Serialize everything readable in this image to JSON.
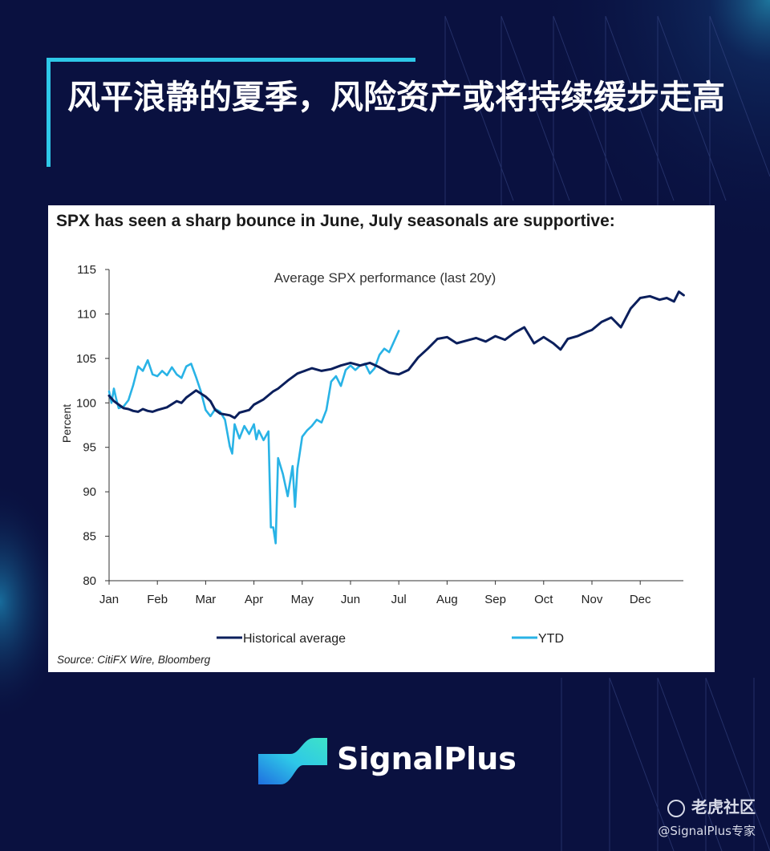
{
  "page_title": "风平浪静的夏季，风险资产或将持续缓步走高",
  "colors": {
    "background": "#0a1140",
    "accent": "#2ec8e8",
    "historical": "#0b1f5c",
    "ytd": "#29b3e6"
  },
  "brand": {
    "name": "SignalPlus"
  },
  "watermark": {
    "site": "老虎社区",
    "author": "@SignalPlus专家",
    "icon": "tiger-icon"
  },
  "chart_data": {
    "type": "line",
    "headline": "SPX has seen a sharp bounce in June, July seasonals are supportive:",
    "title": "Average SPX performance (last 20y)",
    "ylabel": "Percent",
    "xlabel": "",
    "ylim": [
      80,
      115
    ],
    "yticks": [
      80,
      85,
      90,
      95,
      100,
      105,
      110,
      115
    ],
    "months": [
      "Jan",
      "Feb",
      "Mar",
      "Apr",
      "May",
      "Jun",
      "Jul",
      "Aug",
      "Sep",
      "Oct",
      "Nov",
      "Dec"
    ],
    "grid": false,
    "legend_position": "bottom",
    "source": "Source: CitiFX Wire, Bloomberg",
    "series": [
      {
        "name": "Historical average",
        "color": "#0b1f5c",
        "x": [
          0,
          0.1,
          0.2,
          0.3,
          0.4,
          0.5,
          0.6,
          0.7,
          0.8,
          0.9,
          1.0,
          1.2,
          1.4,
          1.5,
          1.6,
          1.8,
          2.0,
          2.1,
          2.2,
          2.3,
          2.5,
          2.6,
          2.7,
          2.9,
          3.0,
          3.2,
          3.4,
          3.5,
          3.7,
          3.9,
          4.0,
          4.2,
          4.4,
          4.6,
          4.8,
          5.0,
          5.2,
          5.4,
          5.6,
          5.8,
          6.0,
          6.2,
          6.4,
          6.6,
          6.8,
          7.0,
          7.2,
          7.4,
          7.6,
          7.8,
          8.0,
          8.2,
          8.4,
          8.6,
          8.8,
          9.0,
          9.2,
          9.35,
          9.5,
          9.7,
          9.9,
          10.0,
          10.2,
          10.4,
          10.6,
          10.8,
          11.0,
          11.2,
          11.4,
          11.55,
          11.7,
          11.8,
          11.9
        ],
        "values": [
          100.8,
          100.2,
          99.8,
          99.4,
          99.3,
          99.1,
          99.0,
          99.3,
          99.1,
          99.0,
          99.2,
          99.5,
          100.2,
          100.0,
          100.6,
          101.4,
          100.7,
          100.2,
          99.2,
          98.8,
          98.6,
          98.3,
          98.9,
          99.2,
          99.8,
          100.4,
          101.3,
          101.6,
          102.5,
          103.3,
          103.5,
          103.9,
          103.6,
          103.8,
          104.2,
          104.5,
          104.2,
          104.5,
          104.0,
          103.4,
          103.2,
          103.7,
          105.1,
          106.1,
          107.2,
          107.4,
          106.7,
          107.0,
          107.3,
          106.9,
          107.5,
          107.1,
          107.9,
          108.5,
          106.7,
          107.4,
          106.7,
          106.0,
          107.2,
          107.5,
          108.0,
          108.2,
          109.1,
          109.6,
          108.5,
          110.6,
          111.8,
          112.0,
          111.6,
          111.8,
          111.4,
          112.5,
          112.1
        ]
      },
      {
        "name": "YTD",
        "color": "#29b3e6",
        "x": [
          0,
          0.05,
          0.1,
          0.15,
          0.2,
          0.3,
          0.4,
          0.5,
          0.6,
          0.7,
          0.8,
          0.9,
          1.0,
          1.1,
          1.2,
          1.3,
          1.4,
          1.5,
          1.6,
          1.7,
          1.8,
          1.9,
          2.0,
          2.1,
          2.2,
          2.3,
          2.4,
          2.5,
          2.55,
          2.6,
          2.65,
          2.7,
          2.8,
          2.9,
          3.0,
          3.05,
          3.1,
          3.2,
          3.3,
          3.35,
          3.4,
          3.45,
          3.5,
          3.6,
          3.7,
          3.8,
          3.85,
          3.9,
          4.0,
          4.1,
          4.2,
          4.3,
          4.4,
          4.5,
          4.6,
          4.7,
          4.8,
          4.9,
          5.0,
          5.1,
          5.2,
          5.3,
          5.4,
          5.5,
          5.6,
          5.7,
          5.8,
          5.9,
          6.0
        ],
        "values": [
          101.3,
          100.0,
          101.6,
          100.4,
          99.4,
          99.6,
          100.3,
          102.0,
          104.1,
          103.6,
          104.8,
          103.2,
          103.0,
          103.6,
          103.1,
          104.0,
          103.2,
          102.8,
          104.1,
          104.4,
          102.9,
          101.3,
          99.2,
          98.5,
          99.3,
          99.0,
          98.1,
          95.1,
          94.3,
          97.6,
          96.8,
          96.0,
          97.4,
          96.5,
          97.6,
          95.9,
          96.9,
          95.8,
          96.8,
          86.0,
          86.0,
          84.2,
          93.8,
          92.0,
          89.5,
          92.9,
          88.3,
          92.6,
          96.2,
          96.9,
          97.4,
          98.1,
          97.8,
          99.2,
          102.4,
          103.0,
          101.9,
          103.7,
          104.2,
          103.7,
          104.2,
          104.4,
          103.3,
          103.9,
          105.4,
          106.1,
          105.7,
          106.9,
          108.1
        ]
      }
    ]
  }
}
